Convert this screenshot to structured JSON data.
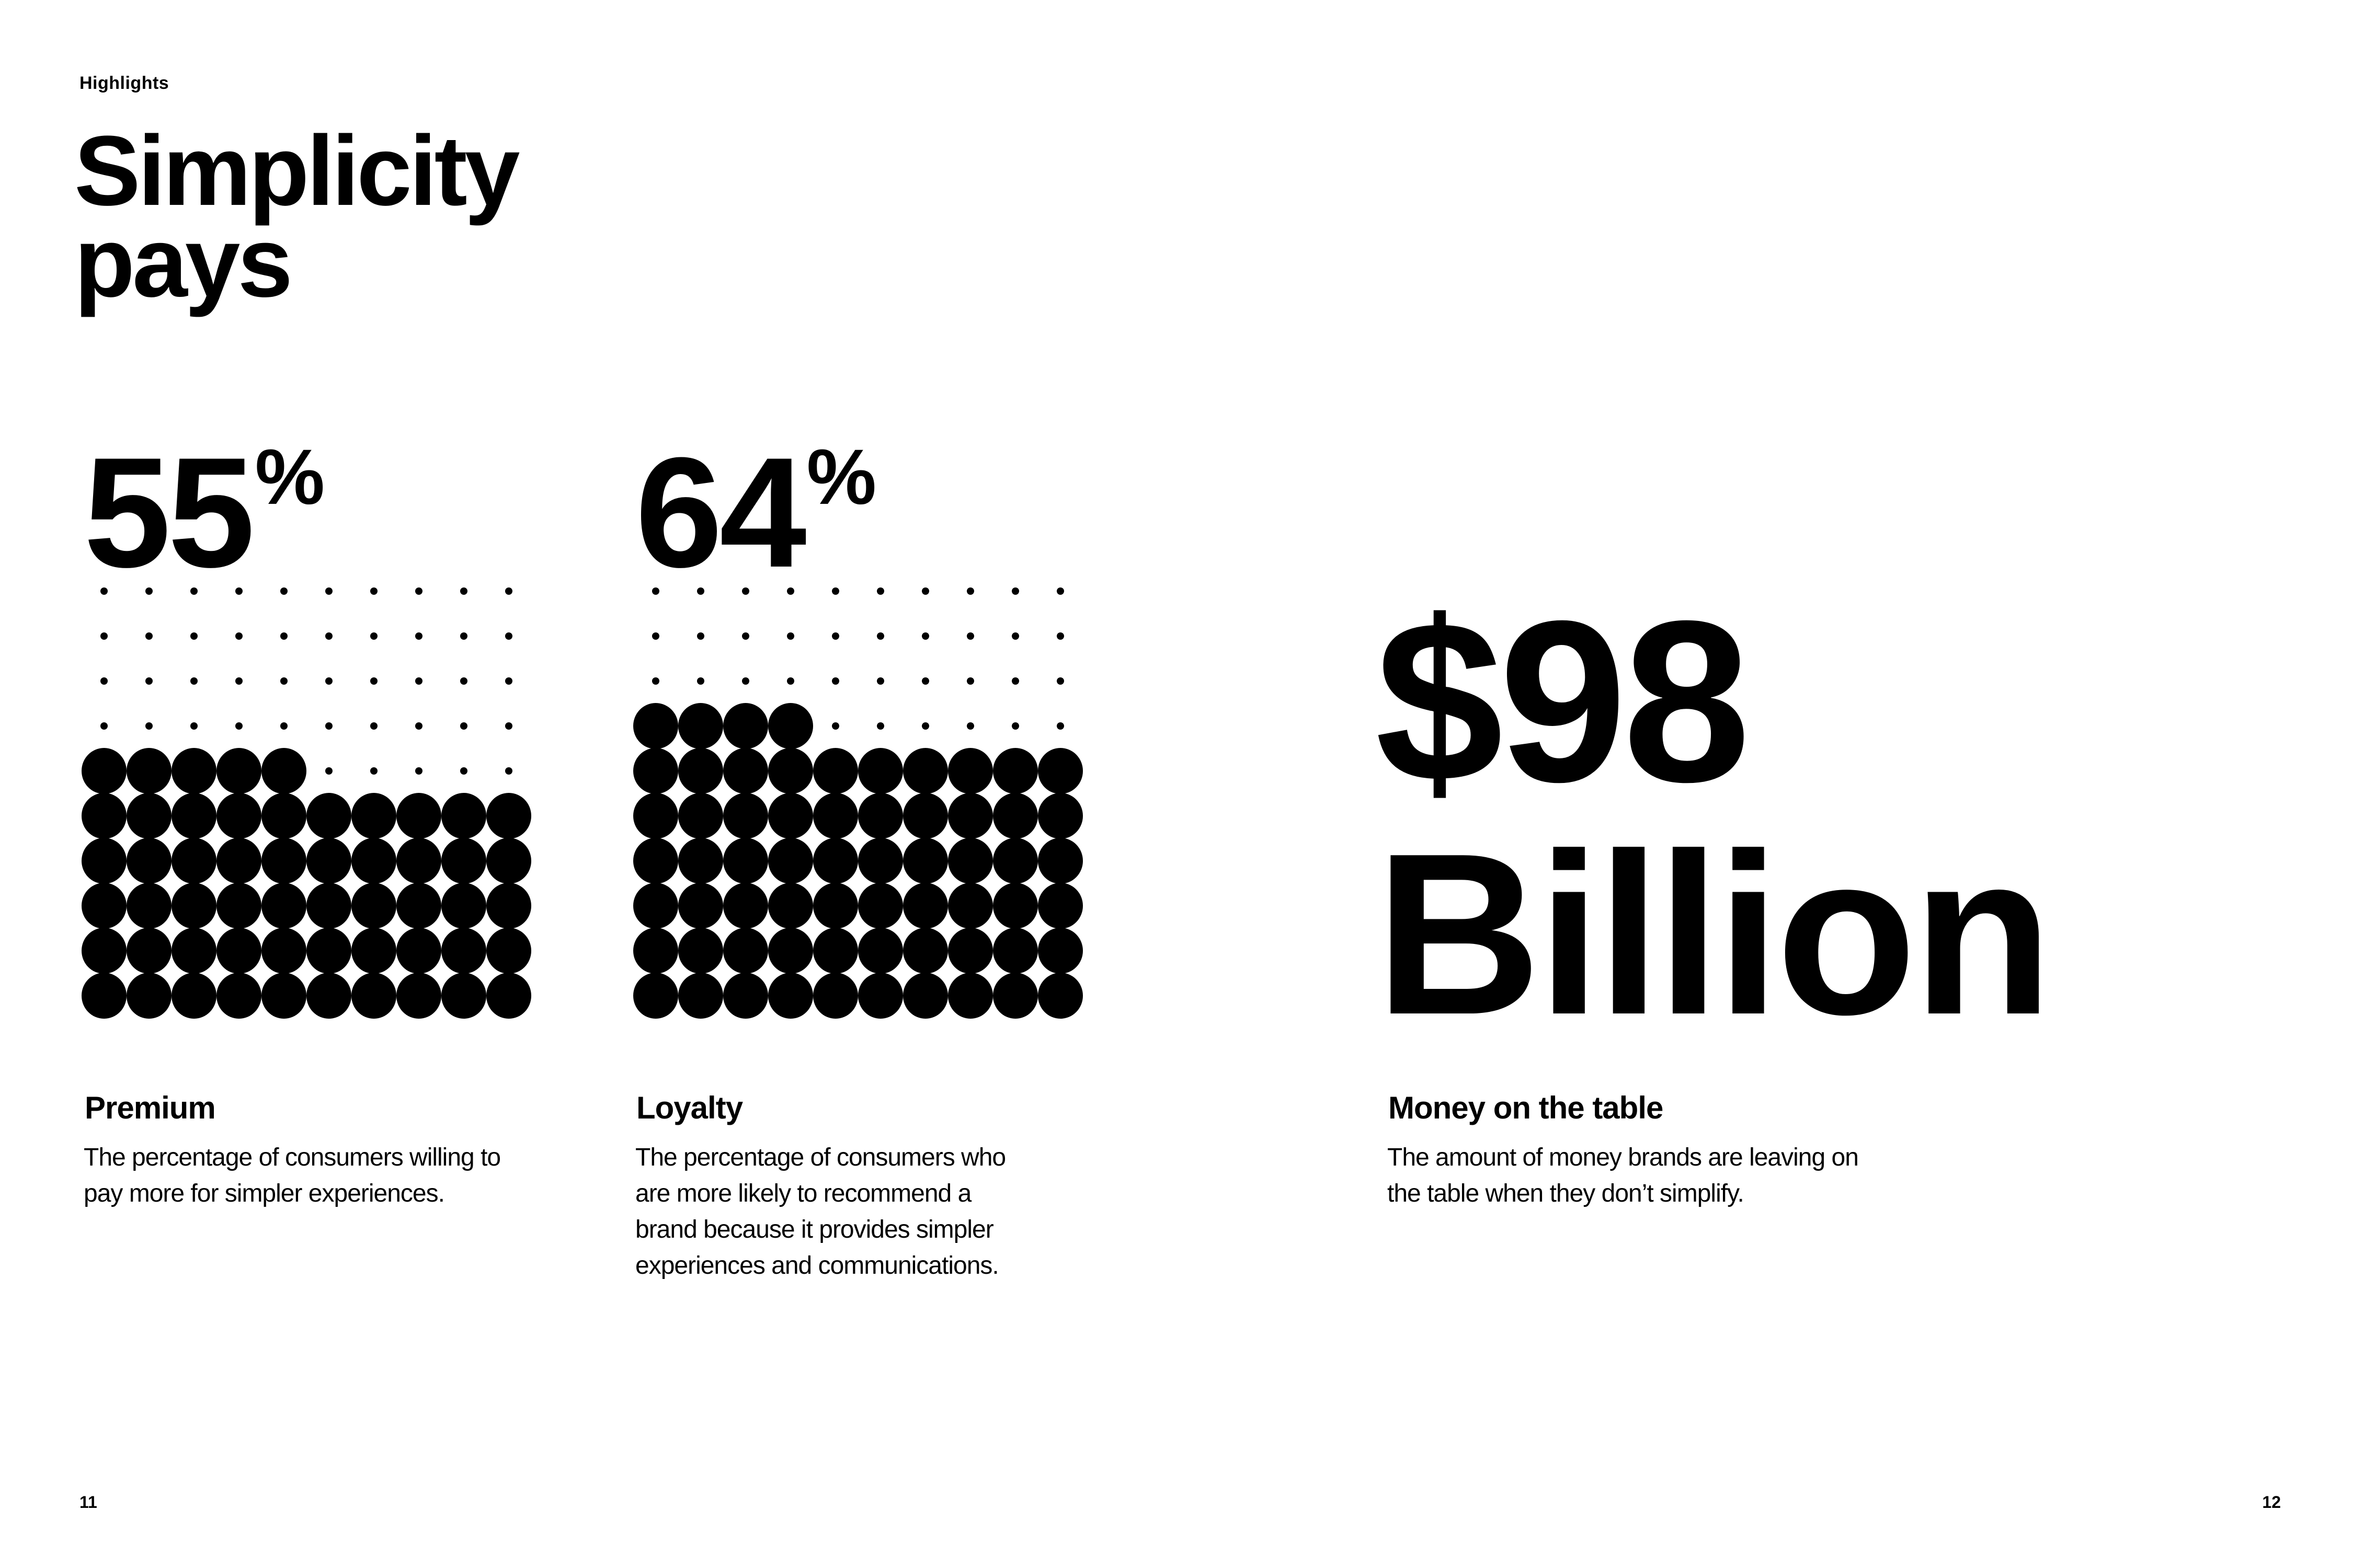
{
  "section_label": "Highlights",
  "title": "Simplicity\npays",
  "stats": [
    {
      "value": "55",
      "unit": "%",
      "percent": 55,
      "heading": "Premium",
      "description": "The percentage of consumers willing to\npay more for simpler experiences."
    },
    {
      "value": "64",
      "unit": "%",
      "percent": 64,
      "heading": "Loyalty",
      "description": "The percentage of consumers who\nare more likely to recommend a\nbrand because it provides simpler\nexperiences and communications."
    }
  ],
  "money": {
    "value": "$98\nBillion",
    "heading": "Money on the table",
    "description": "The amount of money brands are leaving on\nthe table when they don’t simplify."
  },
  "page_numbers": {
    "left": "11",
    "right": "12"
  },
  "colors": {
    "ink": "#000000",
    "background": "#ffffff"
  }
}
